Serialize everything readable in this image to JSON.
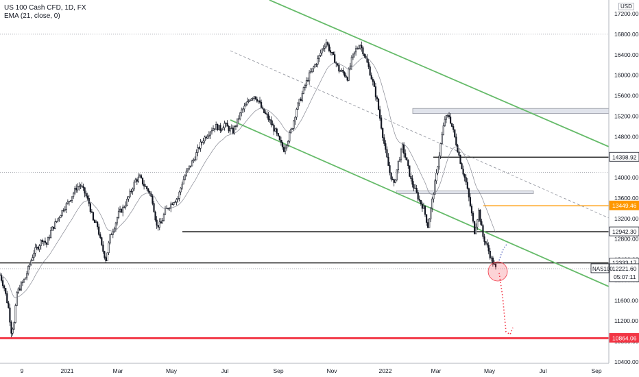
{
  "legend": {
    "symbol": "US 100 Cash CFD, 1D, FX",
    "indicator": "EMA (21, close, 0)"
  },
  "currency": "USD",
  "chart_data": {
    "type": "candlestick",
    "x_tick_labels": [
      "9",
      "2021",
      "Mar",
      "May",
      "Jul",
      "Sep",
      "Nov",
      "2022",
      "Mar",
      "May",
      "Jul",
      "Sep"
    ],
    "y_tick_labels": [
      10400,
      10800,
      11200,
      11600,
      12000,
      12400,
      12800,
      13200,
      13600,
      14000,
      14400,
      14800,
      15200,
      15600,
      16000,
      16400,
      16800,
      17200
    ],
    "y_tick_text": [
      "10400.00",
      "10800.00",
      "11200.00",
      "11600.00",
      "12000.00",
      "12400.00",
      "12800.00",
      "13200.00",
      "13600.00",
      "14000.00",
      "14400.00",
      "14800.00",
      "15200.00",
      "15600.00",
      "16000.00",
      "16400.00",
      "16800.00",
      "17200.00"
    ],
    "ylim": [
      10300,
      17400
    ],
    "price_path": [
      [
        0,
        12100
      ],
      [
        3,
        11850
      ],
      [
        6,
        11450
      ],
      [
        8,
        11000
      ],
      [
        10,
        11150
      ],
      [
        12,
        11750
      ],
      [
        15,
        11900
      ],
      [
        18,
        12050
      ],
      [
        21,
        12300
      ],
      [
        24,
        12550
      ],
      [
        27,
        12650
      ],
      [
        30,
        12800
      ],
      [
        33,
        12700
      ],
      [
        36,
        12950
      ],
      [
        39,
        13100
      ],
      [
        42,
        13250
      ],
      [
        45,
        13400
      ],
      [
        48,
        13500
      ],
      [
        51,
        13650
      ],
      [
        54,
        13800
      ],
      [
        57,
        13850
      ],
      [
        60,
        13700
      ],
      [
        63,
        13500
      ],
      [
        66,
        13150
      ],
      [
        69,
        13050
      ],
      [
        72,
        12650
      ],
      [
        75,
        12400
      ],
      [
        78,
        12850
      ],
      [
        81,
        13050
      ],
      [
        84,
        13300
      ],
      [
        87,
        13400
      ],
      [
        90,
        13550
      ],
      [
        93,
        13750
      ],
      [
        96,
        13950
      ],
      [
        99,
        14000
      ],
      [
        102,
        13850
      ],
      [
        105,
        13750
      ],
      [
        108,
        13550
      ],
      [
        111,
        13050
      ],
      [
        114,
        13100
      ],
      [
        117,
        13350
      ],
      [
        120,
        13450
      ],
      [
        123,
        13550
      ],
      [
        126,
        13600
      ],
      [
        129,
        13900
      ],
      [
        132,
        14100
      ],
      [
        135,
        14250
      ],
      [
        138,
        14400
      ],
      [
        141,
        14600
      ],
      [
        144,
        14750
      ],
      [
        147,
        14850
      ],
      [
        150,
        14950
      ],
      [
        153,
        15000
      ],
      [
        156,
        14950
      ],
      [
        159,
        15050
      ],
      [
        162,
        14950
      ],
      [
        165,
        14900
      ],
      [
        168,
        15100
      ],
      [
        171,
        15300
      ],
      [
        174,
        15400
      ],
      [
        177,
        15550
      ],
      [
        180,
        15600
      ],
      [
        183,
        15500
      ],
      [
        186,
        15300
      ],
      [
        189,
        15200
      ],
      [
        192,
        15050
      ],
      [
        195,
        14900
      ],
      [
        198,
        14700
      ],
      [
        201,
        14550
      ],
      [
        204,
        14750
      ],
      [
        207,
        15000
      ],
      [
        210,
        15350
      ],
      [
        213,
        15550
      ],
      [
        216,
        15800
      ],
      [
        219,
        16000
      ],
      [
        222,
        16150
      ],
      [
        225,
        16300
      ],
      [
        228,
        16500
      ],
      [
        231,
        16650
      ],
      [
        234,
        16450
      ],
      [
        237,
        16300
      ],
      [
        240,
        16100
      ],
      [
        243,
        16050
      ],
      [
        246,
        15950
      ],
      [
        249,
        16300
      ],
      [
        252,
        16500
      ],
      [
        255,
        16600
      ],
      [
        258,
        16400
      ],
      [
        261,
        16150
      ],
      [
        264,
        15850
      ],
      [
        267,
        15500
      ],
      [
        270,
        15000
      ],
      [
        273,
        14500
      ],
      [
        276,
        14100
      ],
      [
        279,
        13850
      ],
      [
        282,
        14300
      ],
      [
        285,
        14600
      ],
      [
        288,
        14300
      ],
      [
        291,
        13950
      ],
      [
        294,
        13750
      ],
      [
        297,
        13550
      ],
      [
        300,
        13400
      ],
      [
        303,
        13050
      ],
      [
        306,
        13550
      ],
      [
        309,
        14050
      ],
      [
        312,
        14650
      ],
      [
        315,
        15150
      ],
      [
        318,
        15200
      ],
      [
        321,
        14900
      ],
      [
        324,
        14550
      ],
      [
        327,
        14200
      ],
      [
        330,
        13900
      ],
      [
        333,
        13450
      ],
      [
        336,
        12950
      ],
      [
        339,
        13350
      ],
      [
        342,
        12850
      ],
      [
        345,
        12650
      ],
      [
        348,
        12400
      ],
      [
        351,
        12221.6
      ]
    ],
    "ema_label": "EMA (21, close, 0)",
    "horizontal_levels": [
      {
        "label": "14398.92",
        "value": 14398.92,
        "color": "#000000"
      },
      {
        "label": "13449.46",
        "value": 13449.46,
        "color": "#ff9800"
      },
      {
        "label": "12942.30",
        "value": 12942.3,
        "color": "#000000"
      },
      {
        "label": "12333.17",
        "value": 12333.17,
        "color": "#000000"
      },
      {
        "label": "10864.06",
        "value": 10864.06,
        "color": "#f23645"
      }
    ],
    "zones": [
      {
        "from": 15250,
        "to": 15350
      },
      {
        "from": 13700,
        "to": 13740
      }
    ],
    "channel_lines": [
      {
        "from": [
          0,
          17250
        ],
        "to": [
          999,
          14800
        ]
      },
      {
        "from": [
          0,
          14700
        ],
        "to": [
          999,
          12000
        ]
      }
    ],
    "current_price": {
      "symbol": "NAS100",
      "value": "12221.60",
      "countdown": "05:07:11"
    },
    "projection_path": [
      [
        351,
        12100
      ],
      [
        357,
        11500
      ],
      [
        361,
        10950
      ],
      [
        366,
        10900
      ]
    ],
    "top_dotted_level": 16800,
    "mid_dotted_level": 14100,
    "bottom_dotted_level": 12220
  }
}
